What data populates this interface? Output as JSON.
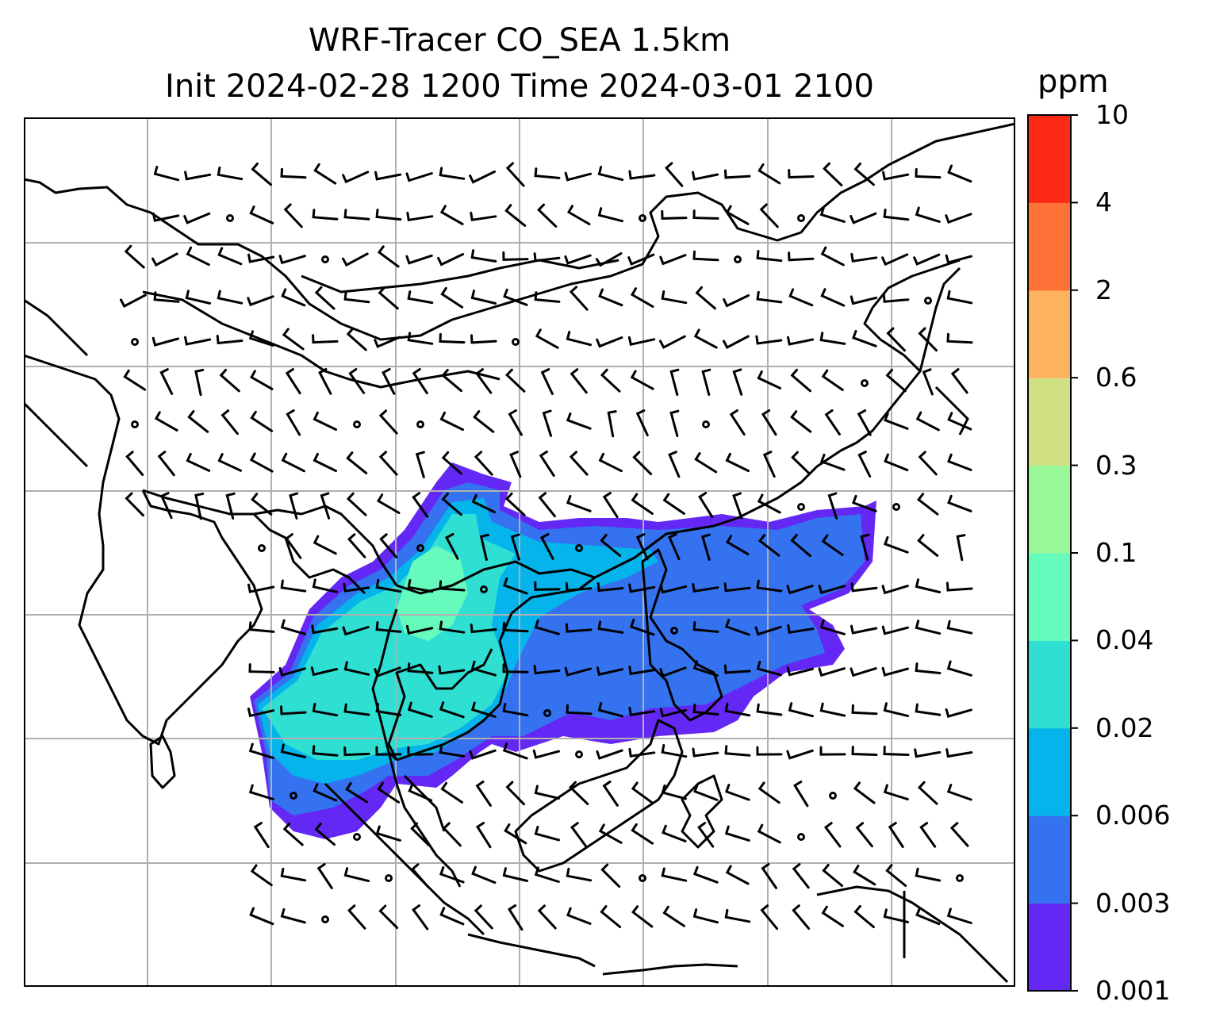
{
  "title_line1": "WRF-Tracer CO_SEA 1.5km",
  "title_line2": "Init 2024-02-28 1200 Time 2024-03-01 2100",
  "colorbar": {
    "units": "ppm",
    "levels": [
      "0.001",
      "0.003",
      "0.006",
      "0.02",
      "0.04",
      "0.1",
      "0.3",
      "0.6",
      "2",
      "4",
      "10"
    ],
    "colors": [
      "#6428f5",
      "#3472f0",
      "#05b4ea",
      "#2fe0d2",
      "#66fbbd",
      "#98f898",
      "#cfe183",
      "#fdb25f",
      "#fe7238",
      "#fd2b16"
    ]
  },
  "map": {
    "tracer_colors": {
      "level1": "#6428f5",
      "level2": "#3472f0",
      "level3": "#05b4ea",
      "level4": "#2fe0d2",
      "level5": "#66fbbd"
    },
    "gridline_color": "#b0b0b0"
  }
}
